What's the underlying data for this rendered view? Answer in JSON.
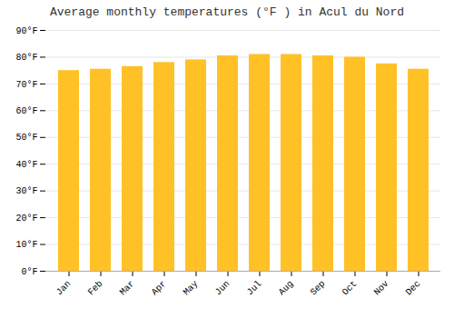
{
  "chart_data": {
    "type": "bar",
    "title": "Average monthly temperatures (°F ) in Acul du Nord",
    "categories": [
      "Jan",
      "Feb",
      "Mar",
      "Apr",
      "May",
      "Jun",
      "Jul",
      "Aug",
      "Sep",
      "Oct",
      "Nov",
      "Dec"
    ],
    "values": [
      75,
      75.5,
      76.5,
      78,
      79,
      80.5,
      81,
      81,
      80.5,
      80,
      77.5,
      75.5
    ],
    "color": "#FFC125",
    "ylim": [
      0,
      90
    ],
    "yticks": [
      {
        "value": 0,
        "label": "0°F"
      },
      {
        "value": 10,
        "label": "10°F"
      },
      {
        "value": 20,
        "label": "20°F"
      },
      {
        "value": 30,
        "label": "30°F"
      },
      {
        "value": 40,
        "label": "40°F"
      },
      {
        "value": 50,
        "label": "50°F"
      },
      {
        "value": 60,
        "label": "60°F"
      },
      {
        "value": 70,
        "label": "70°F"
      },
      {
        "value": 80,
        "label": "80°F"
      },
      {
        "value": 90,
        "label": "90°F"
      }
    ],
    "grid": true
  }
}
